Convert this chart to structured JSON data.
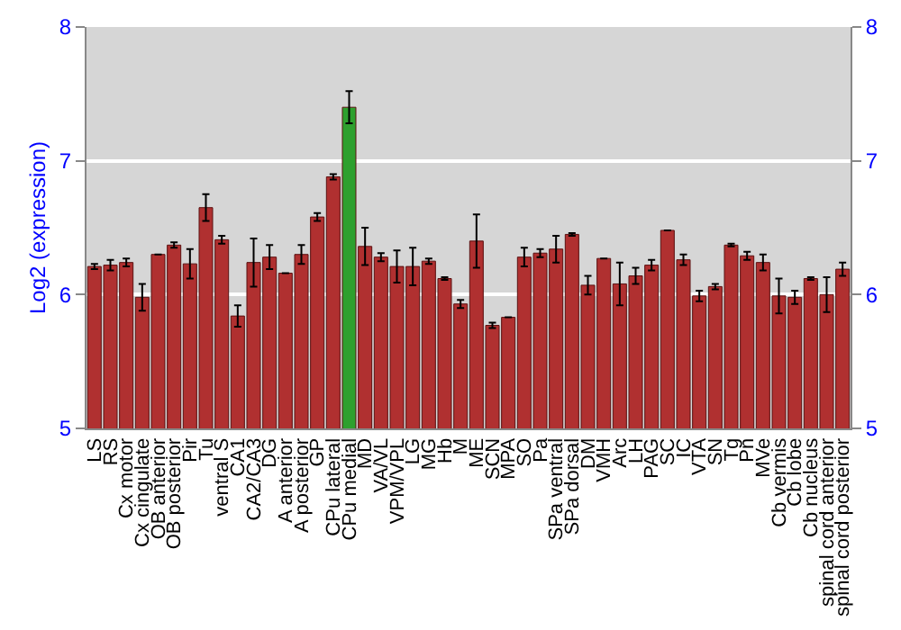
{
  "chart_data": {
    "type": "bar",
    "ylabel": "Log2 (expression)",
    "categories": [
      "LS",
      "RS",
      "Cx motor",
      "Cx cingulate",
      "OB anterior",
      "OB posterior",
      "Pir",
      "Tu",
      "ventral S",
      "CA1",
      "CA2/CA3",
      "DG",
      "A anterior",
      "A posterior",
      "GP",
      "CPu lateral",
      "CPu medial",
      "MD",
      "VA/VL",
      "VPM/VPL",
      "LG",
      "MG",
      "Hb",
      "M",
      "ME",
      "SCN",
      "MPA",
      "SO",
      "Pa",
      "SPa ventral",
      "SPa dorsal",
      "DM",
      "VMH",
      "Arc",
      "LH",
      "PAG",
      "SC",
      "IC",
      "VTA",
      "SN",
      "Tg",
      "Pn",
      "MVe",
      "Cb vermis",
      "Cb lobe",
      "Cb nucleus",
      "spinal cord anterior",
      "spinal cord posterior"
    ],
    "values": [
      6.21,
      6.22,
      6.24,
      5.98,
      6.3,
      6.37,
      6.23,
      6.65,
      6.41,
      5.84,
      6.24,
      6.28,
      6.16,
      6.3,
      6.58,
      6.88,
      7.4,
      6.36,
      6.28,
      6.21,
      6.21,
      6.25,
      6.12,
      5.93,
      6.4,
      5.77,
      5.83,
      6.28,
      6.31,
      6.34,
      6.45,
      6.07,
      6.27,
      6.08,
      6.14,
      6.22,
      6.48,
      6.26,
      5.99,
      6.06,
      6.37,
      6.29,
      6.24,
      5.99,
      5.98,
      6.12,
      6.0,
      6.19
    ],
    "errors": [
      0.02,
      0.04,
      0.03,
      0.1,
      null,
      0.02,
      0.11,
      0.1,
      0.03,
      0.08,
      0.18,
      0.09,
      null,
      0.07,
      0.03,
      0.02,
      0.12,
      0.14,
      0.03,
      0.12,
      0.14,
      0.02,
      0.01,
      0.03,
      0.2,
      0.02,
      null,
      0.07,
      0.03,
      0.1,
      0.01,
      0.07,
      null,
      0.16,
      0.06,
      0.04,
      null,
      0.04,
      0.04,
      0.02,
      0.01,
      0.03,
      0.06,
      0.13,
      0.05,
      0.01,
      0.13,
      0.05
    ],
    "colors": [
      "#b03030",
      "#b03030",
      "#b03030",
      "#b03030",
      "#b03030",
      "#b03030",
      "#b03030",
      "#b03030",
      "#b03030",
      "#b03030",
      "#b03030",
      "#b03030",
      "#b03030",
      "#b03030",
      "#b03030",
      "#b03030",
      "#2ea02e",
      "#b03030",
      "#b03030",
      "#b03030",
      "#b03030",
      "#b03030",
      "#b03030",
      "#b03030",
      "#b03030",
      "#b03030",
      "#b03030",
      "#b03030",
      "#b03030",
      "#b03030",
      "#b03030",
      "#b03030",
      "#b03030",
      "#b03030",
      "#b03030",
      "#b03030",
      "#b03030",
      "#b03030",
      "#b03030",
      "#b03030",
      "#b03030",
      "#b03030",
      "#b03030",
      "#b03030",
      "#b03030",
      "#b03030",
      "#b03030",
      "#b03030"
    ],
    "ylim": [
      5,
      8
    ],
    "yticks": [
      5,
      6,
      7,
      8
    ],
    "y2lim": [
      5,
      8
    ],
    "y2ticks": [
      5,
      6,
      7,
      8
    ],
    "grid": "y"
  }
}
